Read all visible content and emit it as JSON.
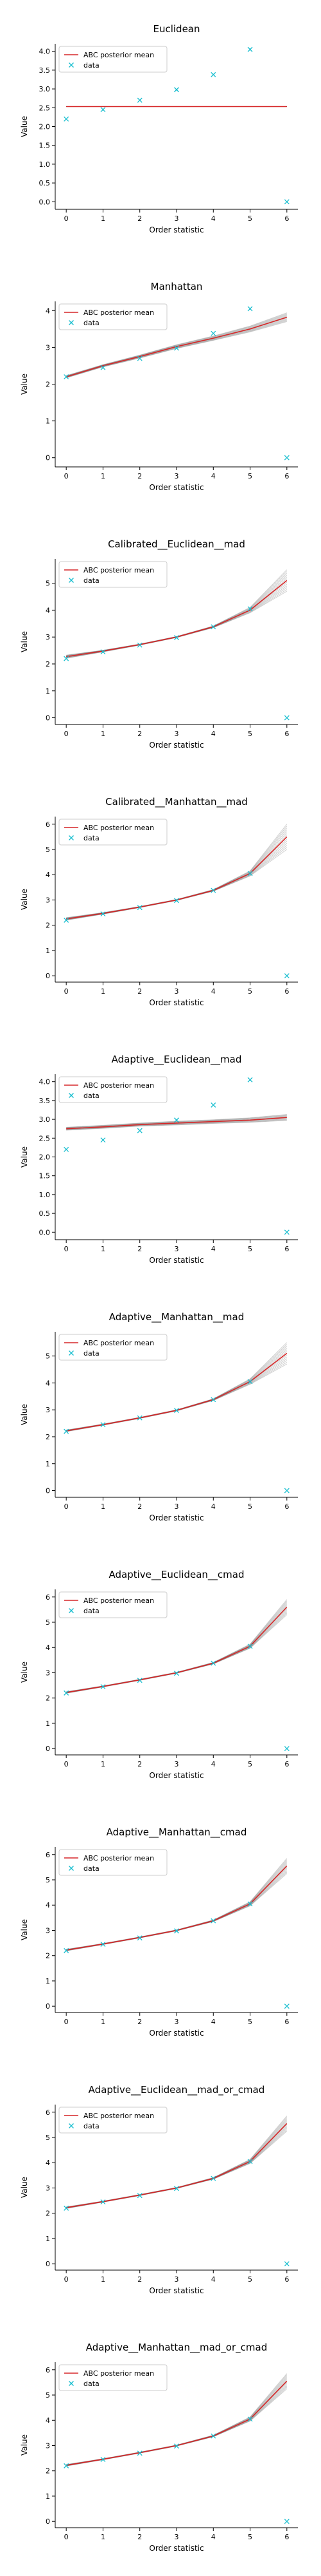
{
  "legend": {
    "posterior_label": "ABC posterior mean",
    "data_label": "data"
  },
  "colors": {
    "posterior_mean": "#d62728",
    "posterior_samples": "#555555",
    "data": "#17becf",
    "axes": "#000000"
  },
  "chart_data": [
    {
      "type": "line",
      "title": "Euclidean",
      "xlabel": "Order statistic",
      "ylabel": "Value",
      "x": [
        0,
        1,
        2,
        3,
        4,
        5,
        6
      ],
      "xticks": [
        0,
        1,
        2,
        3,
        4,
        5,
        6
      ],
      "ylim": [
        -0.2,
        4.2
      ],
      "yticks": [
        0.0,
        0.5,
        1.0,
        1.5,
        2.0,
        2.5,
        3.0,
        3.5,
        4.0
      ],
      "ytick_labels": [
        "0.0",
        "0.5",
        "1.0",
        "1.5",
        "2.0",
        "2.5",
        "3.0",
        "3.5",
        "4.0"
      ],
      "data": [
        2.2,
        2.45,
        2.7,
        2.98,
        3.38,
        4.05,
        0.0
      ],
      "posterior_mean": [
        2.53,
        2.53,
        2.53,
        2.53,
        2.53,
        2.53,
        2.53
      ],
      "spread": [
        0.0,
        0.0,
        0.0,
        0.0,
        0.0,
        0.0,
        0.0
      ],
      "legend_position": "upper-left",
      "grid": false
    },
    {
      "type": "line",
      "title": "Manhattan",
      "xlabel": "Order statistic",
      "ylabel": "Value",
      "x": [
        0,
        1,
        2,
        3,
        4,
        5,
        6
      ],
      "xticks": [
        0,
        1,
        2,
        3,
        4,
        5,
        6
      ],
      "ylim": [
        -0.25,
        4.25
      ],
      "yticks": [
        0,
        1,
        2,
        3,
        4
      ],
      "ytick_labels": [
        "0",
        "1",
        "2",
        "3",
        "4"
      ],
      "data": [
        2.2,
        2.45,
        2.7,
        2.98,
        3.38,
        4.05,
        0.0
      ],
      "posterior_mean": [
        2.2,
        2.5,
        2.75,
        3.02,
        3.25,
        3.5,
        3.82
      ],
      "spread": [
        0.03,
        0.03,
        0.04,
        0.05,
        0.06,
        0.08,
        0.12
      ],
      "legend_position": "upper-left",
      "grid": false
    },
    {
      "type": "line",
      "title": "Calibrated__Euclidean__mad",
      "xlabel": "Order statistic",
      "ylabel": "Value",
      "x": [
        0,
        1,
        2,
        3,
        4,
        5,
        6
      ],
      "xticks": [
        0,
        1,
        2,
        3,
        4,
        5,
        6
      ],
      "ylim": [
        -0.25,
        5.9
      ],
      "yticks": [
        0,
        1,
        2,
        3,
        4,
        5
      ],
      "ytick_labels": [
        "0",
        "1",
        "2",
        "3",
        "4",
        "5"
      ],
      "data": [
        2.2,
        2.45,
        2.7,
        2.98,
        3.38,
        4.05,
        0.0
      ],
      "posterior_mean": [
        2.27,
        2.48,
        2.72,
        3.0,
        3.38,
        4.0,
        5.1
      ],
      "spread": [
        0.06,
        0.03,
        0.02,
        0.02,
        0.03,
        0.1,
        0.4
      ],
      "legend_position": "upper-left",
      "grid": false
    },
    {
      "type": "line",
      "title": "Calibrated__Manhattan__mad",
      "xlabel": "Order statistic",
      "ylabel": "Value",
      "x": [
        0,
        1,
        2,
        3,
        4,
        5,
        6
      ],
      "xticks": [
        0,
        1,
        2,
        3,
        4,
        5,
        6
      ],
      "ylim": [
        -0.25,
        6.3
      ],
      "yticks": [
        0,
        1,
        2,
        3,
        4,
        5,
        6
      ],
      "ytick_labels": [
        "0",
        "1",
        "2",
        "3",
        "4",
        "5",
        "6"
      ],
      "data": [
        2.2,
        2.45,
        2.7,
        2.98,
        3.38,
        4.05,
        0.0
      ],
      "posterior_mean": [
        2.25,
        2.47,
        2.72,
        3.0,
        3.38,
        4.05,
        5.5
      ],
      "spread": [
        0.05,
        0.03,
        0.02,
        0.02,
        0.03,
        0.1,
        0.5
      ],
      "legend_position": "upper-left",
      "grid": false
    },
    {
      "type": "line",
      "title": "Adaptive__Euclidean__mad",
      "xlabel": "Order statistic",
      "ylabel": "Value",
      "x": [
        0,
        1,
        2,
        3,
        4,
        5,
        6
      ],
      "xticks": [
        0,
        1,
        2,
        3,
        4,
        5,
        6
      ],
      "ylim": [
        -0.2,
        4.2
      ],
      "yticks": [
        0.0,
        0.5,
        1.0,
        1.5,
        2.0,
        2.5,
        3.0,
        3.5,
        4.0
      ],
      "ytick_labels": [
        "0.0",
        "0.5",
        "1.0",
        "1.5",
        "2.0",
        "2.5",
        "3.0",
        "3.5",
        "4.0"
      ],
      "data": [
        2.2,
        2.45,
        2.7,
        2.98,
        3.38,
        4.05,
        0.0
      ],
      "posterior_mean": [
        2.75,
        2.8,
        2.86,
        2.9,
        2.94,
        2.98,
        3.05
      ],
      "spread": [
        0.04,
        0.04,
        0.04,
        0.05,
        0.05,
        0.06,
        0.08
      ],
      "legend_position": "upper-left",
      "grid": false
    },
    {
      "type": "line",
      "title": "Adaptive__Manhattan__mad",
      "xlabel": "Order statistic",
      "ylabel": "Value",
      "x": [
        0,
        1,
        2,
        3,
        4,
        5,
        6
      ],
      "xticks": [
        0,
        1,
        2,
        3,
        4,
        5,
        6
      ],
      "ylim": [
        -0.25,
        5.9
      ],
      "yticks": [
        0,
        1,
        2,
        3,
        4,
        5
      ],
      "ytick_labels": [
        "0",
        "1",
        "2",
        "3",
        "4",
        "5"
      ],
      "data": [
        2.2,
        2.45,
        2.7,
        2.98,
        3.38,
        4.05,
        0.0
      ],
      "posterior_mean": [
        2.22,
        2.45,
        2.7,
        2.98,
        3.38,
        4.05,
        5.1
      ],
      "spread": [
        0.03,
        0.02,
        0.02,
        0.02,
        0.03,
        0.1,
        0.4
      ],
      "legend_position": "upper-left",
      "grid": false
    },
    {
      "type": "line",
      "title": "Adaptive__Euclidean__cmad",
      "xlabel": "Order statistic",
      "ylabel": "Value",
      "x": [
        0,
        1,
        2,
        3,
        4,
        5,
        6
      ],
      "xticks": [
        0,
        1,
        2,
        3,
        4,
        5,
        6
      ],
      "ylim": [
        -0.25,
        6.3
      ],
      "yticks": [
        0,
        1,
        2,
        3,
        4,
        5,
        6
      ],
      "ytick_labels": [
        "0",
        "1",
        "2",
        "3",
        "4",
        "5",
        "6"
      ],
      "data": [
        2.2,
        2.45,
        2.7,
        2.98,
        3.38,
        4.05,
        0.0
      ],
      "posterior_mean": [
        2.22,
        2.46,
        2.72,
        3.0,
        3.38,
        4.05,
        5.6
      ],
      "spread": [
        0.03,
        0.02,
        0.02,
        0.02,
        0.03,
        0.08,
        0.3
      ],
      "legend_position": "upper-left",
      "grid": false
    },
    {
      "type": "line",
      "title": "Adaptive__Manhattan__cmad",
      "xlabel": "Order statistic",
      "ylabel": "Value",
      "x": [
        0,
        1,
        2,
        3,
        4,
        5,
        6
      ],
      "xticks": [
        0,
        1,
        2,
        3,
        4,
        5,
        6
      ],
      "ylim": [
        -0.25,
        6.3
      ],
      "yticks": [
        0,
        1,
        2,
        3,
        4,
        5,
        6
      ],
      "ytick_labels": [
        "0",
        "1",
        "2",
        "3",
        "4",
        "5",
        "6"
      ],
      "data": [
        2.2,
        2.45,
        2.7,
        2.98,
        3.38,
        4.05,
        0.0
      ],
      "posterior_mean": [
        2.22,
        2.46,
        2.72,
        3.0,
        3.38,
        4.05,
        5.55
      ],
      "spread": [
        0.03,
        0.02,
        0.02,
        0.02,
        0.03,
        0.08,
        0.3
      ],
      "legend_position": "upper-left",
      "grid": false
    },
    {
      "type": "line",
      "title": "Adaptive__Euclidean__mad_or_cmad",
      "xlabel": "Order statistic",
      "ylabel": "Value",
      "x": [
        0,
        1,
        2,
        3,
        4,
        5,
        6
      ],
      "xticks": [
        0,
        1,
        2,
        3,
        4,
        5,
        6
      ],
      "ylim": [
        -0.25,
        6.3
      ],
      "yticks": [
        0,
        1,
        2,
        3,
        4,
        5,
        6
      ],
      "ytick_labels": [
        "0",
        "1",
        "2",
        "3",
        "4",
        "5",
        "6"
      ],
      "data": [
        2.2,
        2.45,
        2.7,
        2.98,
        3.38,
        4.05,
        0.0
      ],
      "posterior_mean": [
        2.22,
        2.46,
        2.72,
        3.0,
        3.38,
        4.05,
        5.55
      ],
      "spread": [
        0.03,
        0.02,
        0.02,
        0.02,
        0.03,
        0.08,
        0.3
      ],
      "legend_position": "upper-left",
      "grid": false
    },
    {
      "type": "line",
      "title": "Adaptive__Manhattan__mad_or_cmad",
      "xlabel": "Order statistic",
      "ylabel": "Value",
      "x": [
        0,
        1,
        2,
        3,
        4,
        5,
        6
      ],
      "xticks": [
        0,
        1,
        2,
        3,
        4,
        5,
        6
      ],
      "ylim": [
        -0.25,
        6.3
      ],
      "yticks": [
        0,
        1,
        2,
        3,
        4,
        5,
        6
      ],
      "ytick_labels": [
        "0",
        "1",
        "2",
        "3",
        "4",
        "5",
        "6"
      ],
      "data": [
        2.2,
        2.45,
        2.7,
        2.98,
        3.38,
        4.05,
        0.0
      ],
      "posterior_mean": [
        2.22,
        2.46,
        2.72,
        3.0,
        3.38,
        4.05,
        5.55
      ],
      "spread": [
        0.03,
        0.02,
        0.02,
        0.02,
        0.03,
        0.08,
        0.3
      ],
      "legend_position": "upper-left",
      "grid": false
    }
  ]
}
